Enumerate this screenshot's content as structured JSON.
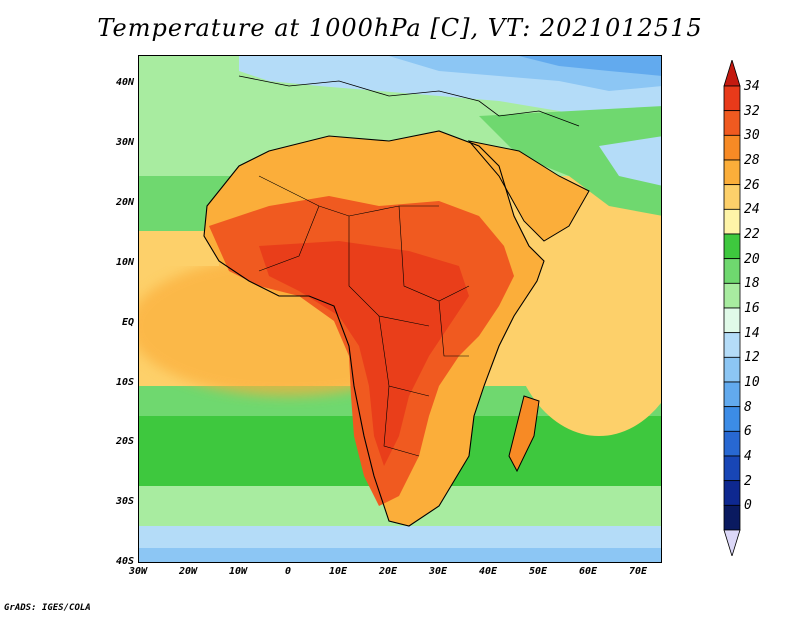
{
  "title": "Temperature at 1000hPa [C], VT: 2021012515",
  "credit": "GrADS: IGES/COLA",
  "lat_labels": [
    "40N",
    "30N",
    "20N",
    "10N",
    "EQ",
    "10S",
    "20S",
    "30S",
    "40S"
  ],
  "lon_labels": [
    "30W",
    "20W",
    "10W",
    "0",
    "10E",
    "20E",
    "30E",
    "40E",
    "50E",
    "60E",
    "70E"
  ],
  "colorbar": {
    "labels": [
      "34",
      "32",
      "30",
      "28",
      "26",
      "24",
      "22",
      "20",
      "18",
      "16",
      "14",
      "12",
      "10",
      "8",
      "6",
      "4",
      "2",
      "0"
    ],
    "colors": [
      "#e83a1a",
      "#f05a20",
      "#f78a25",
      "#fbae3a",
      "#fdd06a",
      "#fef4a8",
      "#3ec83e",
      "#6fd86f",
      "#a8eca0",
      "#e0fae8",
      "#b4dcf8",
      "#8cc6f4",
      "#62aaee",
      "#3c8ce6",
      "#2868d2",
      "#1846b6",
      "#0e2890",
      "#0a1a60"
    ],
    "top_arrow_color": "#c41a10",
    "bottom_arrow_color": "#dcd8f8"
  }
}
